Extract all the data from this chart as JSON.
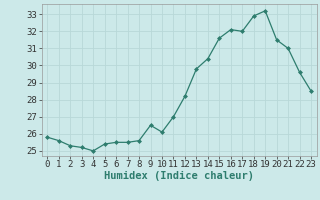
{
  "x": [
    0,
    1,
    2,
    3,
    4,
    5,
    6,
    7,
    8,
    9,
    10,
    11,
    12,
    13,
    14,
    15,
    16,
    17,
    18,
    19,
    20,
    21,
    22,
    23
  ],
  "y": [
    25.8,
    25.6,
    25.3,
    25.2,
    25.0,
    25.4,
    25.5,
    25.5,
    25.6,
    26.5,
    26.1,
    27.0,
    28.2,
    29.8,
    30.4,
    31.6,
    32.1,
    32.0,
    32.9,
    33.2,
    31.5,
    31.0,
    29.6,
    28.5
  ],
  "xlabel": "Humidex (Indice chaleur)",
  "ylim": [
    24.7,
    33.6
  ],
  "xlim": [
    -0.5,
    23.5
  ],
  "yticks": [
    25,
    26,
    27,
    28,
    29,
    30,
    31,
    32,
    33
  ],
  "xticks": [
    0,
    1,
    2,
    3,
    4,
    5,
    6,
    7,
    8,
    9,
    10,
    11,
    12,
    13,
    14,
    15,
    16,
    17,
    18,
    19,
    20,
    21,
    22,
    23
  ],
  "line_color": "#2e7d6e",
  "marker": "D",
  "marker_size": 2.0,
  "bg_color": "#cce9e9",
  "grid_color": "#b8d8d8",
  "xlabel_fontsize": 7.5,
  "tick_fontsize": 6.5,
  "linewidth": 0.9
}
